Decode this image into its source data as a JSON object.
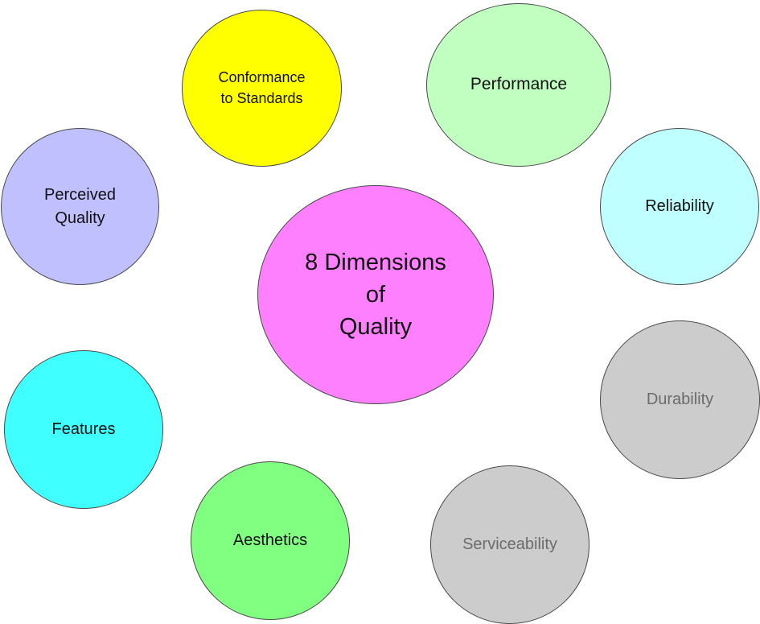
{
  "center": {
    "line1": "8 Dimensions",
    "line2": "of",
    "line3": "Quality",
    "color": "#ff80ff"
  },
  "dimensions": {
    "conformance": {
      "line1": "Conformance",
      "line2": "to Standards",
      "color": "#ffff00"
    },
    "performance": {
      "label": "Performance",
      "color": "#c0ffc0"
    },
    "reliability": {
      "label": "Reliability",
      "color": "#c0ffff"
    },
    "perceived": {
      "line1": "Perceived",
      "line2": "Quality",
      "color": "#c0c0ff"
    },
    "durability": {
      "label": "Durability",
      "color": "#cccccc"
    },
    "features": {
      "label": "Features",
      "color": "#40ffff"
    },
    "aesthetics": {
      "label": "Aesthetics",
      "color": "#80ff80"
    },
    "serviceability": {
      "label": "Serviceability",
      "color": "#cccccc"
    }
  }
}
